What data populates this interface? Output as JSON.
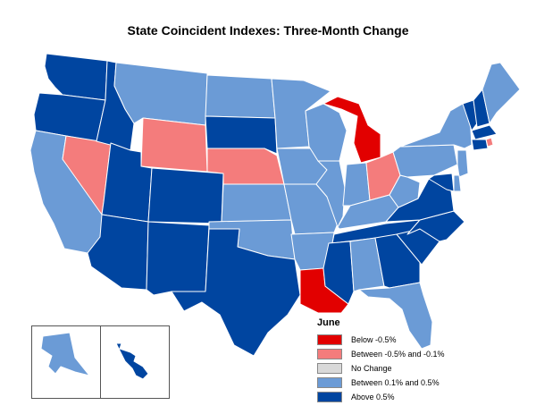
{
  "title": "State Coincident Indexes: Three-Month Change",
  "colors": {
    "below_neg_0_5": "#e20000",
    "neg_0_5_to_neg_0_1": "#f47c7c",
    "no_change": "#d9d9d9",
    "pos_0_1_to_0_5": "#6b9bd6",
    "above_0_5": "#0045a0",
    "border": "#ffffff"
  },
  "legend": {
    "title": "June",
    "items": [
      {
        "label": "Below -0.5%",
        "color_key": "below_neg_0_5"
      },
      {
        "label": "Between -0.5% and -0.1%",
        "color_key": "neg_0_5_to_neg_0_1"
      },
      {
        "label": "No Change",
        "color_key": "no_change"
      },
      {
        "label": "Between 0.1% and 0.5%",
        "color_key": "pos_0_1_to_0_5"
      },
      {
        "label": "Above 0.5%",
        "color_key": "above_0_5"
      }
    ]
  },
  "states": {
    "WA": "above_0_5",
    "OR": "above_0_5",
    "CA": "pos_0_1_to_0_5",
    "NV": "neg_0_5_to_neg_0_1",
    "ID": "above_0_5",
    "MT": "pos_0_1_to_0_5",
    "WY": "neg_0_5_to_neg_0_1",
    "UT": "above_0_5",
    "AZ": "above_0_5",
    "CO": "above_0_5",
    "NM": "above_0_5",
    "ND": "pos_0_1_to_0_5",
    "SD": "above_0_5",
    "NE": "neg_0_5_to_neg_0_1",
    "KS": "pos_0_1_to_0_5",
    "OK": "pos_0_1_to_0_5",
    "TX": "above_0_5",
    "MN": "pos_0_1_to_0_5",
    "IA": "pos_0_1_to_0_5",
    "MO": "pos_0_1_to_0_5",
    "AR": "pos_0_1_to_0_5",
    "LA": "below_neg_0_5",
    "WI": "pos_0_1_to_0_5",
    "IL": "pos_0_1_to_0_5",
    "MI": "below_neg_0_5",
    "IN": "pos_0_1_to_0_5",
    "OH": "neg_0_5_to_neg_0_1",
    "KY": "pos_0_1_to_0_5",
    "TN": "above_0_5",
    "MS": "above_0_5",
    "AL": "pos_0_1_to_0_5",
    "GA": "above_0_5",
    "FL": "pos_0_1_to_0_5",
    "SC": "above_0_5",
    "NC": "above_0_5",
    "VA": "above_0_5",
    "WV": "pos_0_1_to_0_5",
    "PA": "pos_0_1_to_0_5",
    "NY": "pos_0_1_to_0_5",
    "VT": "above_0_5",
    "NH": "above_0_5",
    "ME": "pos_0_1_to_0_5",
    "MA": "above_0_5",
    "RI": "neg_0_5_to_neg_0_1",
    "CT": "above_0_5",
    "NJ": "pos_0_1_to_0_5",
    "DE": "pos_0_1_to_0_5",
    "MD": "above_0_5",
    "AK": "pos_0_1_to_0_5",
    "HI": "above_0_5"
  }
}
